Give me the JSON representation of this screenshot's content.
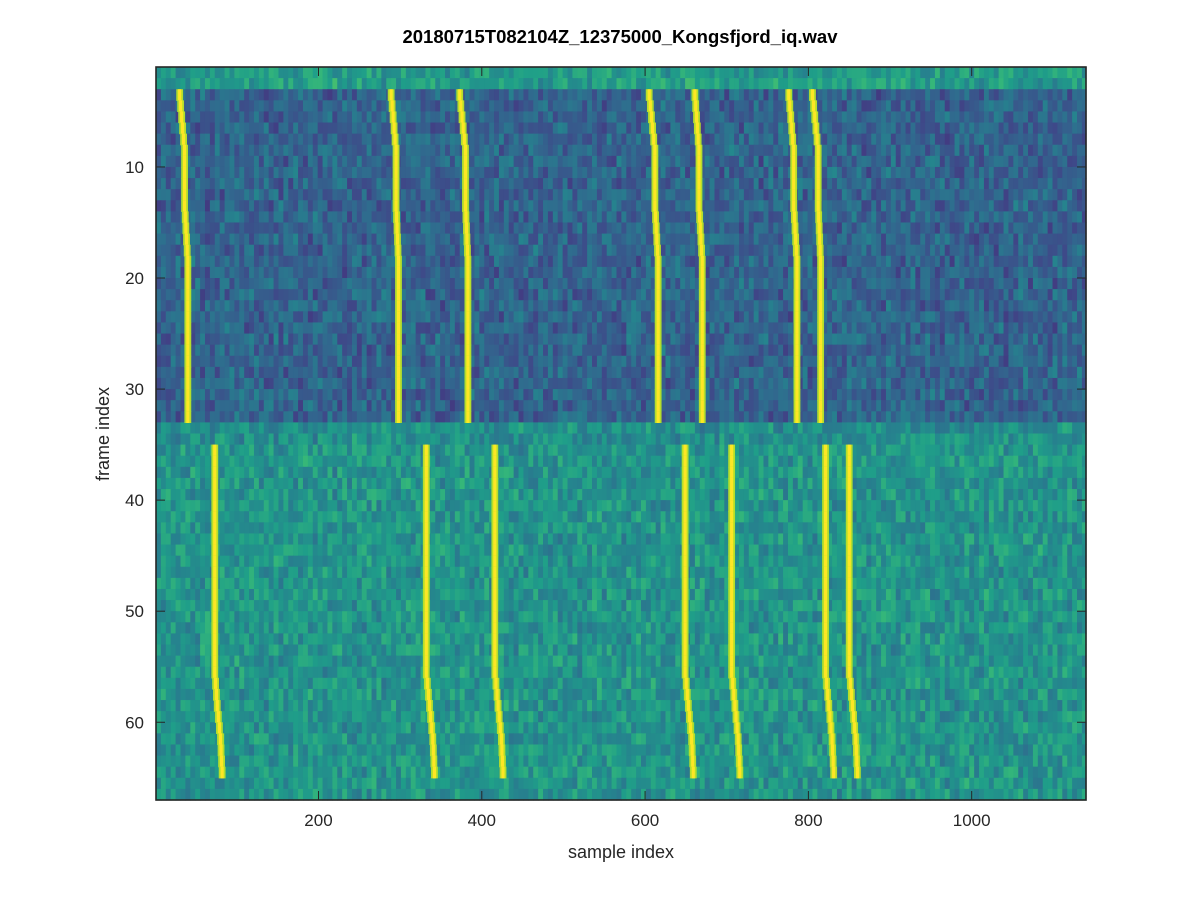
{
  "chart_data": {
    "type": "heatmap",
    "title": "20180715T082104Z_12375000_Kongsfjord_iq.wav",
    "xlabel": "sample index",
    "ylabel": "frame index",
    "xlim": [
      1,
      1140
    ],
    "ylim": [
      1,
      67
    ],
    "y_reversed": true,
    "colormap": "viridis",
    "colorbar": false,
    "grid": false,
    "x_ticks": [
      200,
      400,
      600,
      800,
      1000
    ],
    "y_ticks": [
      10,
      20,
      30,
      40,
      50,
      60
    ],
    "x_tick_labels": [
      "200",
      "400",
      "600",
      "800",
      "1000"
    ],
    "y_tick_labels": [
      "10",
      "20",
      "30",
      "40",
      "50",
      "60"
    ],
    "colors": {
      "low": "#3b528b",
      "mid": "#21918c",
      "high": "#fde725",
      "trace": "#b5de2b"
    },
    "regions": [
      {
        "name": "header row",
        "frames": [
          1,
          2
        ],
        "level": 0.55
      },
      {
        "name": "upper block",
        "frames": [
          3,
          32
        ],
        "level": 0.32
      },
      {
        "name": "gap",
        "frames": [
          33,
          34
        ],
        "level": 0.5
      },
      {
        "name": "lower block",
        "frames": [
          35,
          64
        ],
        "level": 0.52
      },
      {
        "name": "footer row",
        "frames": [
          65,
          67
        ],
        "level": 0.52
      }
    ],
    "trace_groups": [
      {
        "frames": [
          3,
          32
        ],
        "keypoints_frame": [
          3,
          8,
          13,
          18,
          32
        ],
        "traces": [
          {
            "sample": [
              30,
              36,
              36,
              40,
              40
            ]
          },
          {
            "sample": [
              289,
              295,
              295,
              298,
              298
            ]
          },
          {
            "sample": [
              373,
              380,
              380,
              383,
              383
            ]
          },
          {
            "sample": [
              605,
              612,
              612,
              616,
              616
            ]
          },
          {
            "sample": [
              661,
              666,
              666,
              670,
              670
            ]
          },
          {
            "sample": [
              776,
              782,
              782,
              786,
              786
            ]
          },
          {
            "sample": [
              805,
              812,
              812,
              815,
              815
            ]
          }
        ]
      },
      {
        "frames": [
          35,
          64
        ],
        "keypoints_frame": [
          35,
          55,
          58,
          61,
          64
        ],
        "traces": [
          {
            "sample": [
              73,
              73,
              76,
              80,
              82
            ]
          },
          {
            "sample": [
              332,
              332,
              336,
              340,
              342
            ]
          },
          {
            "sample": [
              416,
              416,
              420,
              424,
              426
            ]
          },
          {
            "sample": [
              649,
              649,
              653,
              657,
              659
            ]
          },
          {
            "sample": [
              706,
              706,
              710,
              714,
              716
            ]
          },
          {
            "sample": [
              821,
              821,
              825,
              829,
              831
            ]
          },
          {
            "sample": [
              850,
              850,
              854,
              858,
              860
            ]
          }
        ]
      }
    ]
  }
}
